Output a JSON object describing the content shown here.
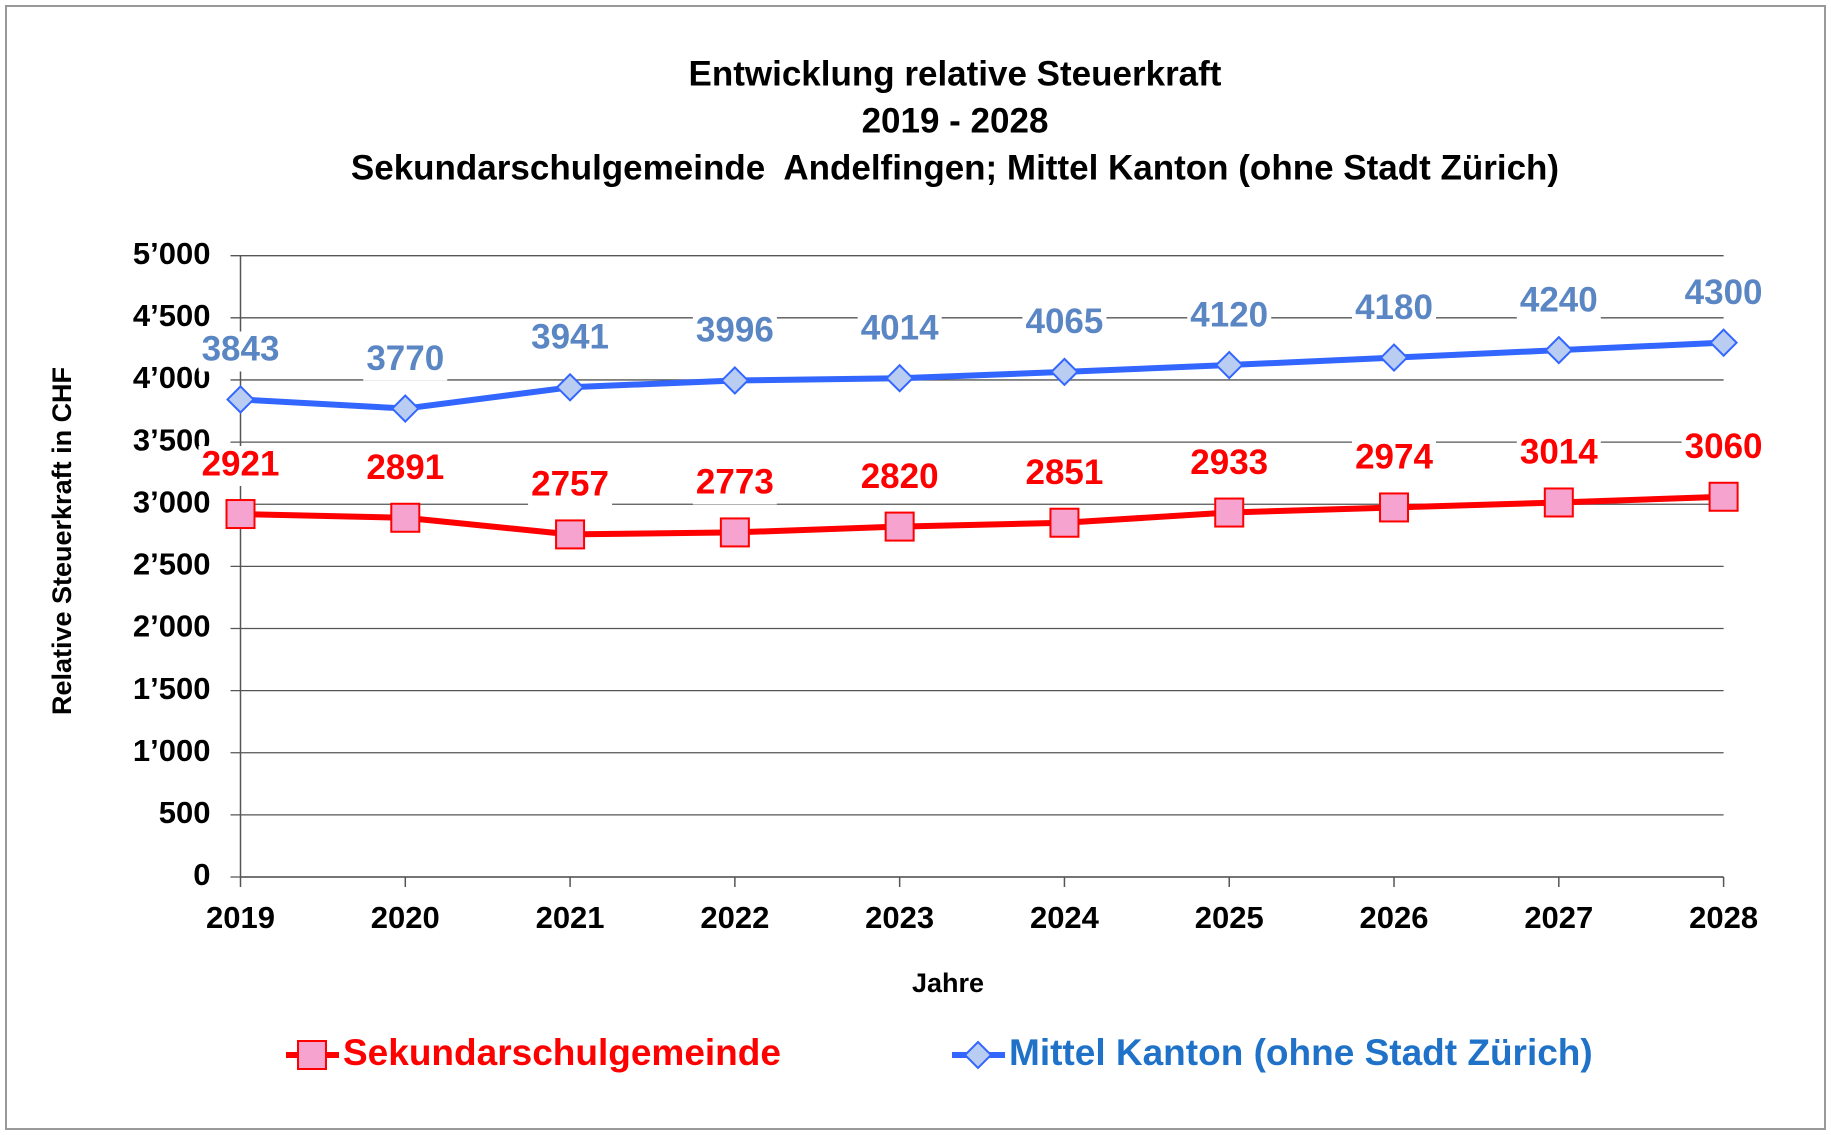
{
  "chart_data": {
    "type": "line",
    "title": [
      "Entwicklung relative Steuerkraft",
      "2019 - 2028",
      "Sekundarschulgemeinde  Andelfingen; Mittel Kanton (ohne Stadt Zürich)"
    ],
    "x_label": "Jahre",
    "y_label": "Relative Steuerkraft in CHF",
    "categories": [
      "2019",
      "2020",
      "2021",
      "2022",
      "2023",
      "2024",
      "2025",
      "2026",
      "2027",
      "2028"
    ],
    "series": [
      {
        "name": "Sekundarschulgemeinde",
        "color": "#ff0000",
        "marker_color": "#f7a3d0",
        "label_color": "#ff0000",
        "marker": "square",
        "values": [
          2921,
          2891,
          2757,
          2773,
          2820,
          2851,
          2933,
          2974,
          3014,
          3060
        ]
      },
      {
        "name": "Mittel Kanton (ohne Stadt Zürich)",
        "color": "#3366ff",
        "marker_color": "#b9cdf2",
        "label_color": "#5b86c4",
        "legend_color": "#1f72c8",
        "marker": "diamond",
        "values": [
          3843,
          3770,
          3941,
          3996,
          4014,
          4065,
          4120,
          4180,
          4240,
          4300
        ]
      }
    ],
    "ylim": [
      0,
      5000
    ],
    "yticks": [
      0,
      500,
      {
        "value": 1000,
        "label": "1’000"
      },
      {
        "value": 1500,
        "label": "1’500"
      },
      {
        "value": 2000,
        "label": "2’000"
      },
      {
        "value": 2500,
        "label": "2’500"
      },
      {
        "value": 3000,
        "label": "3’000"
      },
      {
        "value": 3500,
        "label": "3’500"
      },
      {
        "value": 4000,
        "label": "4’000"
      },
      {
        "value": 4500,
        "label": "4’500"
      },
      {
        "value": 5000,
        "label": "5’000"
      }
    ],
    "grid": true,
    "legend": "bottom"
  }
}
